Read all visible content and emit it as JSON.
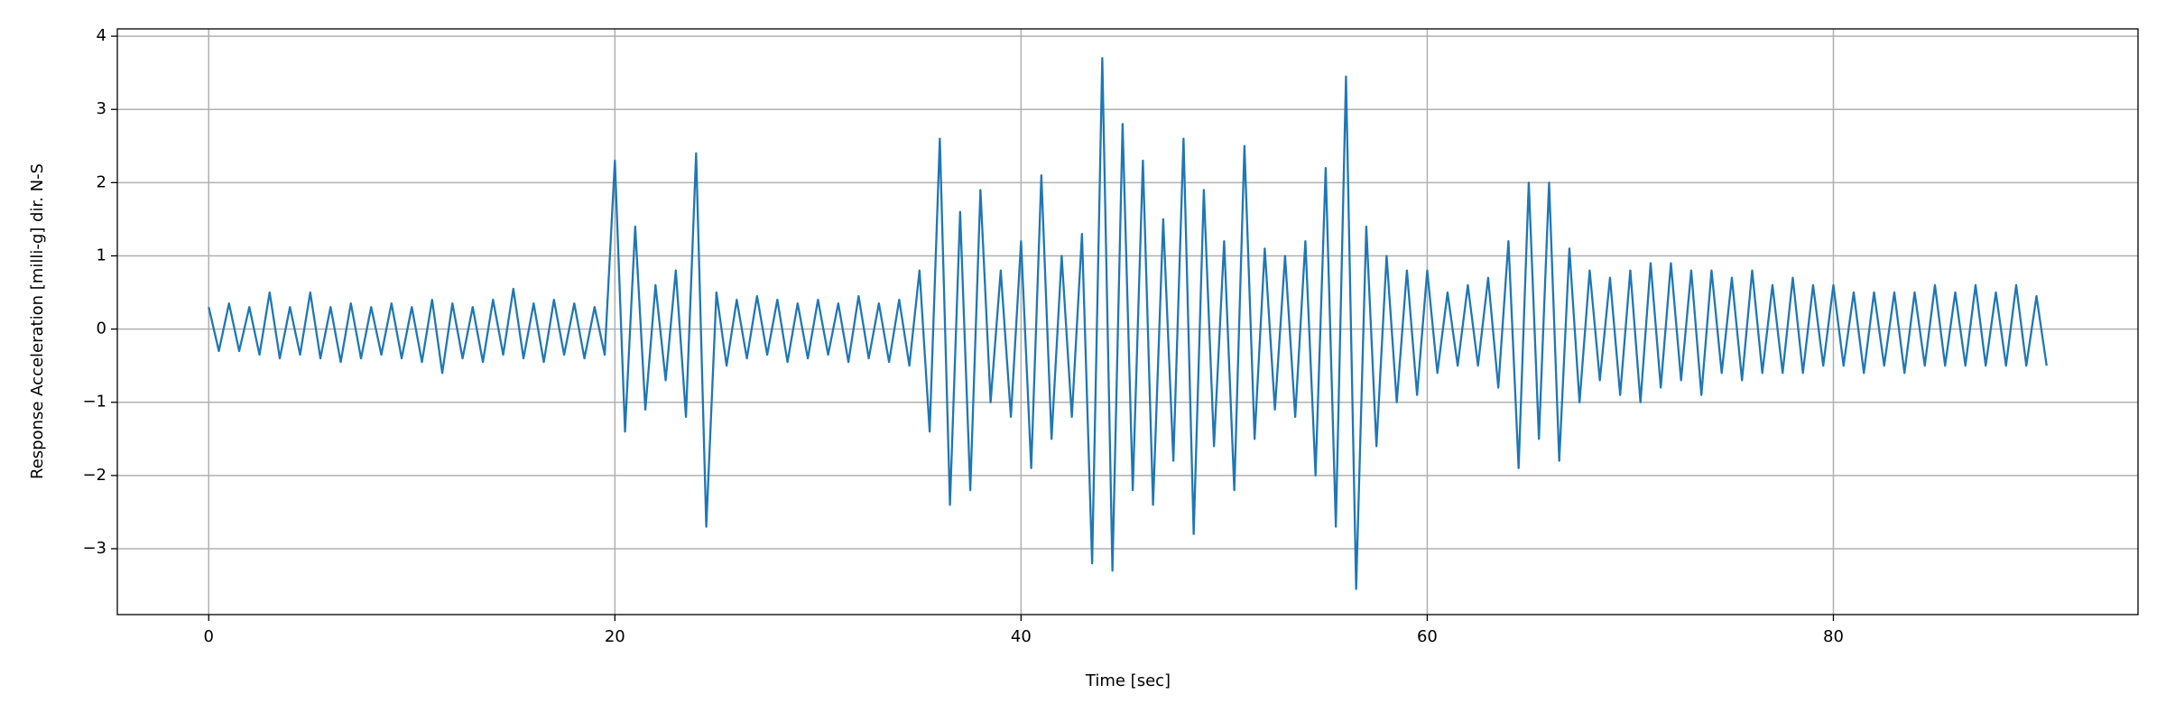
{
  "chart_data": {
    "type": "line",
    "xlabel": "Time [sec]",
    "ylabel": "Response Acceleration [milli-g] dir. N-S",
    "color": "#1f77b4",
    "grid": true,
    "xlim": [
      -4.5,
      95
    ],
    "ylim": [
      -3.9,
      4.1
    ],
    "xticks": [
      0,
      20,
      40,
      60,
      80
    ],
    "yticks": [
      {
        "value": -3,
        "label": "−3"
      },
      {
        "value": -2,
        "label": "−2"
      },
      {
        "value": -1,
        "label": "−1"
      },
      0,
      1,
      2,
      3,
      4
    ],
    "x": [
      0,
      0.5,
      1,
      1.5,
      2,
      2.5,
      3,
      3.5,
      4,
      4.5,
      5,
      5.5,
      6,
      6.5,
      7,
      7.5,
      8,
      8.5,
      9,
      9.5,
      10,
      10.5,
      11,
      11.5,
      12,
      12.5,
      13,
      13.5,
      14,
      14.5,
      15,
      15.5,
      16,
      16.5,
      17,
      17.5,
      18,
      18.5,
      19,
      19.5,
      20,
      20.5,
      21,
      21.5,
      22,
      22.5,
      23,
      23.5,
      24,
      24.5,
      25,
      25.5,
      26,
      26.5,
      27,
      27.5,
      28,
      28.5,
      29,
      29.5,
      30,
      30.5,
      31,
      31.5,
      32,
      32.5,
      33,
      33.5,
      34,
      34.5,
      35,
      35.5,
      36,
      36.5,
      37,
      37.5,
      38,
      38.5,
      39,
      39.5,
      40,
      40.5,
      41,
      41.5,
      42,
      42.5,
      43,
      43.5,
      44,
      44.5,
      45,
      45.5,
      46,
      46.5,
      47,
      47.5,
      48,
      48.5,
      49,
      49.5,
      50,
      50.5,
      51,
      51.5,
      52,
      52.5,
      53,
      53.5,
      54,
      54.5,
      55,
      55.5,
      56,
      56.5,
      57,
      57.5,
      58,
      58.5,
      59,
      59.5,
      60,
      60.5,
      61,
      61.5,
      62,
      62.5,
      63,
      63.5,
      64,
      64.5,
      65,
      65.5,
      66,
      66.5,
      67,
      67.5,
      68,
      68.5,
      69,
      69.5,
      70,
      70.5,
      71,
      71.5,
      72,
      72.5,
      73,
      73.5,
      74,
      74.5,
      75,
      75.5,
      76,
      76.5,
      77,
      77.5,
      78,
      78.5,
      79,
      79.5,
      80,
      80.5,
      81,
      81.5,
      82,
      82.5,
      83,
      83.5,
      84,
      84.5,
      85,
      85.5,
      86,
      86.5,
      87,
      87.5,
      88,
      88.5,
      89,
      89.5,
      90,
      90.5
    ],
    "values": [
      0.3,
      -0.3,
      0.35,
      -0.3,
      0.3,
      -0.35,
      0.5,
      -0.4,
      0.3,
      -0.35,
      0.5,
      -0.4,
      0.3,
      -0.45,
      0.35,
      -0.4,
      0.3,
      -0.35,
      0.35,
      -0.4,
      0.3,
      -0.45,
      0.4,
      -0.6,
      0.35,
      -0.4,
      0.3,
      -0.45,
      0.4,
      -0.35,
      0.55,
      -0.4,
      0.35,
      -0.45,
      0.4,
      -0.35,
      0.35,
      -0.4,
      0.3,
      -0.35,
      2.3,
      -1.4,
      1.4,
      -1.1,
      0.6,
      -0.7,
      0.8,
      -1.2,
      2.4,
      -2.7,
      0.5,
      -0.5,
      0.4,
      -0.4,
      0.45,
      -0.35,
      0.4,
      -0.45,
      0.35,
      -0.4,
      0.4,
      -0.35,
      0.35,
      -0.45,
      0.45,
      -0.4,
      0.35,
      -0.45,
      0.4,
      -0.5,
      0.8,
      -1.4,
      2.6,
      -2.4,
      1.6,
      -2.2,
      1.9,
      -1.0,
      0.8,
      -1.2,
      1.2,
      -1.9,
      2.1,
      -1.5,
      1.0,
      -1.2,
      1.3,
      -3.2,
      3.7,
      -3.3,
      2.8,
      -2.2,
      2.3,
      -2.4,
      1.5,
      -1.8,
      2.6,
      -2.8,
      1.9,
      -1.6,
      1.2,
      -2.2,
      2.5,
      -1.5,
      1.1,
      -1.1,
      1.0,
      -1.2,
      1.2,
      -2.0,
      2.2,
      -2.7,
      3.45,
      -3.55,
      1.4,
      -1.6,
      1.0,
      -1.0,
      0.8,
      -0.9,
      0.8,
      -0.6,
      0.5,
      -0.5,
      0.6,
      -0.5,
      0.7,
      -0.8,
      1.2,
      -1.9,
      2.0,
      -1.5,
      2.0,
      -1.8,
      1.1,
      -1.0,
      0.8,
      -0.7,
      0.7,
      -0.9,
      0.8,
      -1.0,
      0.9,
      -0.8,
      0.9,
      -0.7,
      0.8,
      -0.9,
      0.8,
      -0.6,
      0.7,
      -0.7,
      0.8,
      -0.6,
      0.6,
      -0.6,
      0.7,
      -0.6,
      0.6,
      -0.5,
      0.6,
      -0.5,
      0.5,
      -0.6,
      0.5,
      -0.5,
      0.5,
      -0.6,
      0.5,
      -0.5,
      0.6,
      -0.5,
      0.5,
      -0.5,
      0.6,
      -0.5,
      0.5,
      -0.5,
      0.6,
      -0.5,
      0.45,
      -0.5
    ]
  }
}
